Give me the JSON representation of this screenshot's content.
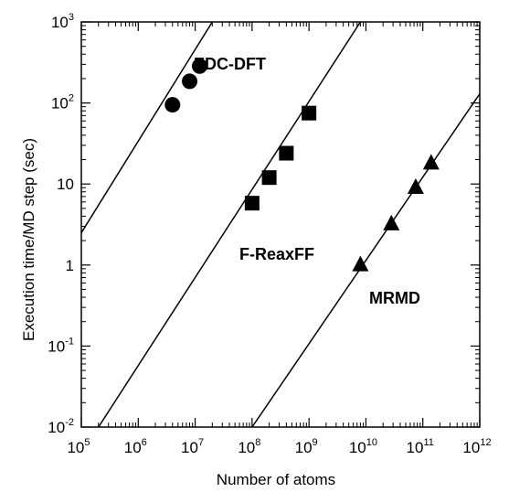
{
  "chart_data": {
    "type": "scatter",
    "title": "",
    "xlabel": "Number of atoms",
    "ylabel": "Execution time/MD step (sec)",
    "xscale": "log",
    "yscale": "log",
    "xlim": [
      100000,
      1000000000000
    ],
    "ylim": [
      0.01,
      1000
    ],
    "grid": false,
    "x_ticks": [
      {
        "value": 100000,
        "base": "10",
        "exp": "5"
      },
      {
        "value": 1000000,
        "base": "10",
        "exp": "6"
      },
      {
        "value": 10000000,
        "base": "10",
        "exp": "7"
      },
      {
        "value": 100000000,
        "base": "10",
        "exp": "8"
      },
      {
        "value": 1000000000,
        "base": "10",
        "exp": "9"
      },
      {
        "value": 10000000000,
        "base": "10",
        "exp": "10"
      },
      {
        "value": 100000000000,
        "base": "10",
        "exp": "11"
      },
      {
        "value": 1000000000000,
        "base": "10",
        "exp": "12"
      }
    ],
    "y_ticks": [
      {
        "value": 0.01,
        "base": "10",
        "exp": "-2"
      },
      {
        "value": 0.1,
        "base": "10",
        "exp": "-1"
      },
      {
        "value": 1,
        "base": "1",
        "exp": ""
      },
      {
        "value": 10,
        "base": "10",
        "exp": ""
      },
      {
        "value": 100,
        "base": "10",
        "exp": "2"
      },
      {
        "value": 1000,
        "base": "10",
        "exp": "3"
      }
    ],
    "series": [
      {
        "name": "EDC-DFT",
        "marker": "circle",
        "points": [
          {
            "x": 4000000,
            "y": 95
          },
          {
            "x": 8000000,
            "y": 185
          },
          {
            "x": 12000000,
            "y": 285
          }
        ],
        "fit_line": [
          {
            "x": 100000,
            "y": 2.5
          },
          {
            "x": 20000000,
            "y": 1000
          }
        ]
      },
      {
        "name": "F-ReaxFF",
        "marker": "square",
        "points": [
          {
            "x": 100000000,
            "y": 5.8
          },
          {
            "x": 200000000,
            "y": 12
          },
          {
            "x": 400000000,
            "y": 24
          },
          {
            "x": 1000000000,
            "y": 75
          }
        ],
        "fit_line": [
          {
            "x": 200000,
            "y": 0.01
          },
          {
            "x": 8000000000,
            "y": 1000
          }
        ]
      },
      {
        "name": "MRMD",
        "marker": "triangle",
        "points": [
          {
            "x": 8000000000,
            "y": 1.0
          },
          {
            "x": 28000000000,
            "y": 3.2
          },
          {
            "x": 75000000000,
            "y": 9
          },
          {
            "x": 140000000000,
            "y": 18
          }
        ],
        "fit_line": [
          {
            "x": 100000000,
            "y": 0.01
          },
          {
            "x": 1000000000000,
            "y": 130
          }
        ]
      }
    ]
  }
}
